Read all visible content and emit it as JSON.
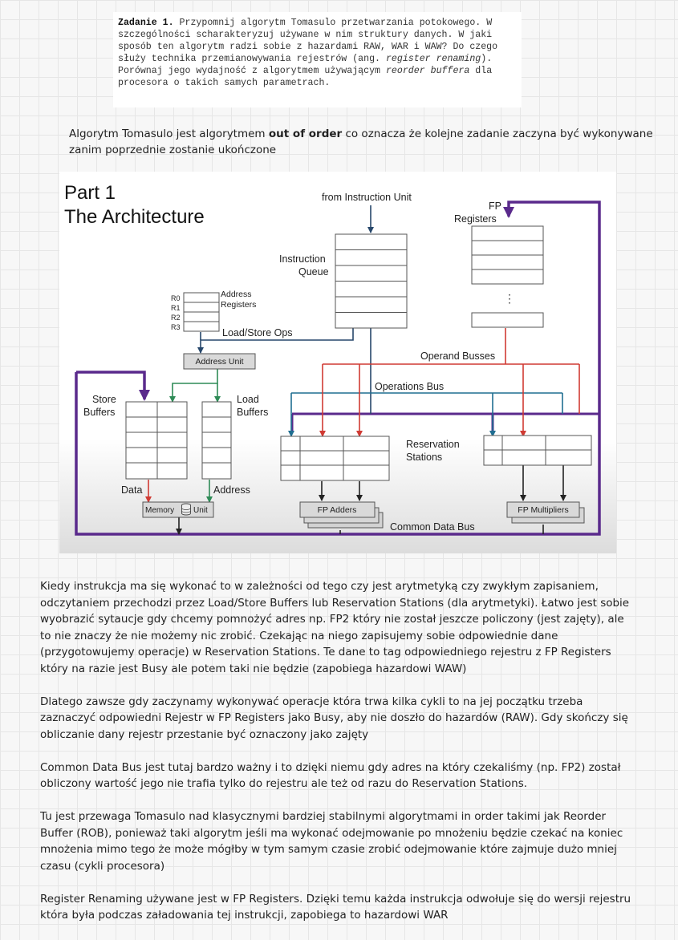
{
  "task": {
    "label": "Zadanie 1.",
    "text_part1": " Przypomnij algorytm Tomasulo przetwarzania potokowego. W szczególności scharakteryzuj używane w nim struktury danych. W jaki sposób ten algorytm radzi sobie z hazardami RAW, WAR i WAW? Do czego służy technika przemianowywania rejestrów (ang. ",
    "italic1": "register renaming",
    "text_part2": "). Porównaj jego wydajność z algorytmem używającym ",
    "italic2": "reorder buffera",
    "text_part3": " dla procesora o takich samych parametrach."
  },
  "intro": {
    "before": "Algorytm Tomasulo jest algorytmem ",
    "bold": "out of order",
    "after": " co oznacza że kolejne zadanie zaczyna być wykonywane zanim poprzednie zostanie ukończone"
  },
  "diagram": {
    "title_line1": "Part 1",
    "title_line2": "The Architecture",
    "from_instruction_unit": "from Instruction Unit",
    "fp_registers_line1": "FP",
    "fp_registers_line2": "Registers",
    "instruction_queue_line1": "Instruction",
    "instruction_queue_line2": "Queue",
    "address_registers_line1": "Address",
    "address_registers_line2": "Registers",
    "reg_r0": "R0",
    "reg_r1": "R1",
    "reg_r2": "R2",
    "reg_r3": "R3",
    "load_store_ops": "Load/Store Ops",
    "address_unit": "Address Unit",
    "operand_busses": "Operand Busses",
    "operations_bus": "Operations Bus",
    "store_buffers_line1": "Store",
    "store_buffers_line2": "Buffers",
    "load_buffers_line1": "Load",
    "load_buffers_line2": "Buffers",
    "reservation_stations_line1": "Reservation",
    "reservation_stations_line2": "Stations",
    "data_label": "Data",
    "address_label": "Address",
    "memory_unit_left": "Memory",
    "memory_unit_right": "Unit",
    "fp_adders": "FP Adders",
    "fp_multipliers": "FP Multipliers",
    "common_data_bus": "Common Data Bus",
    "vertical_ellipsis": "⋮",
    "colors": {
      "purple_bus": "#5a2a8c",
      "blue_bus": "#1f6e91",
      "red_bus": "#d03a33",
      "green_bus": "#2f8b57"
    }
  },
  "paragraphs": [
    "Kiedy instrukcja ma się wykonać to w zależności od tego czy jest arytmetyką czy zwykłym zapisaniem, odczytaniem przechodzi przez Load/Store Buffers lub Reservation Stations (dla arytmetyki). Łatwo jest sobie wyobrazić sytaucje gdy chcemy pomnożyć adres np. FP2 który nie został jeszcze policzony (jest zajęty), ale to nie znaczy że nie możemy nic zrobić. Czekając na niego zapisujemy sobie odpowiednie dane (przygotowujemy operacje) w Reservation Stations. Te dane to tag odpowiedniego rejestru z FP Registers który na razie jest Busy ale potem taki nie będzie (zapobiega hazardowi WAW)",
    "Dlatego zawsze gdy zaczynamy wykonywać operacje która trwa kilka cykli to na jej początku trzeba zaznaczyć odpowiedni Rejestr w FP Registers jako Busy, aby nie doszło do hazardów (RAW). Gdy skończy się obliczanie dany rejestr przestanie być oznaczony jako zajęty",
    "Common Data Bus jest tutaj bardzo ważny i to dzięki niemu gdy adres na który czekaliśmy (np. FP2) został obliczony wartość jego nie trafia tylko do rejestru ale też od razu do Reservation Stations.",
    "Tu jest przewaga Tomasulo nad klasycznymi bardziej stabilnymi algorytmami in order takimi jak Reorder Buffer (ROB), ponieważ taki algorytm jeśli ma wykonać odejmowanie po mnożeniu będzie czekać na koniec mnożenia mimo tego że może mógłby w tym samym czasie zrobić odejmowanie które zajmuje dużo mniej czasu (cykli procesora)",
    "Register Renaming używane jest w FP Registers. Dzięki temu każda instrukcja odwołuje się do wersji rejestru która była podczas załadowania tej instrukcji, zapobiega to hazardowi WAR"
  ]
}
